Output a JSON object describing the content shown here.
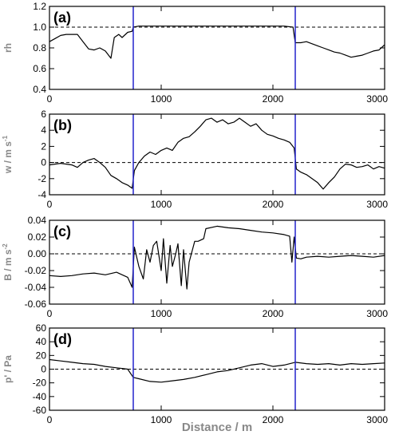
{
  "chart_data": [
    {
      "type": "line",
      "panel_label": "(a)",
      "ylabel": "rh",
      "ylim": [
        0.4,
        1.2
      ],
      "yticks": [
        0.4,
        0.6,
        0.8,
        1.0,
        1.2
      ],
      "ytick_labels": [
        "0.4",
        "0.6",
        "0.8",
        "1.0",
        "1.2"
      ],
      "xlim": [
        0,
        3000
      ],
      "xticks": [
        0,
        1000,
        2000,
        3000
      ],
      "xtick_labels": [
        "0",
        "1000",
        "2000",
        "3000"
      ],
      "reference_line": 1.0,
      "vlines": [
        750,
        2200
      ],
      "series": [
        {
          "x": [
            0,
            50,
            100,
            150,
            200,
            250,
            300,
            350,
            400,
            450,
            500,
            550,
            580,
            620,
            650,
            700,
            740,
            750,
            800,
            900,
            1000,
            1100,
            1200,
            1300,
            1400,
            1500,
            1600,
            1700,
            1800,
            1900,
            2000,
            2100,
            2180,
            2200,
            2250,
            2300,
            2350,
            2400,
            2450,
            2500,
            2550,
            2600,
            2650,
            2700,
            2750,
            2800,
            2850,
            2900,
            2950,
            3000
          ],
          "y": [
            0.86,
            0.89,
            0.92,
            0.93,
            0.93,
            0.93,
            0.86,
            0.79,
            0.78,
            0.8,
            0.77,
            0.7,
            0.9,
            0.93,
            0.9,
            0.95,
            0.96,
            1.0,
            1.01,
            1.01,
            1.01,
            1.01,
            1.01,
            1.01,
            1.01,
            1.01,
            1.01,
            1.01,
            1.01,
            1.01,
            1.01,
            1.01,
            1.0,
            0.85,
            0.85,
            0.86,
            0.84,
            0.82,
            0.8,
            0.78,
            0.76,
            0.75,
            0.73,
            0.71,
            0.72,
            0.73,
            0.75,
            0.77,
            0.78,
            0.83
          ]
        }
      ]
    },
    {
      "type": "line",
      "panel_label": "(b)",
      "ylabel": "w / m s",
      "ylabel_sup": "-1",
      "ylim": [
        -4,
        6
      ],
      "yticks": [
        -4,
        -2,
        0,
        2,
        4,
        6
      ],
      "ytick_labels": [
        "-4",
        "-2",
        "0",
        "2",
        "4",
        "6"
      ],
      "xlim": [
        0,
        3000
      ],
      "xticks": [
        0,
        1000,
        2000,
        3000
      ],
      "xtick_labels": [
        "0",
        "1000",
        "2000",
        "3000"
      ],
      "reference_line": 0,
      "vlines": [
        750,
        2200
      ],
      "series": [
        {
          "x": [
            0,
            50,
            100,
            150,
            200,
            250,
            300,
            350,
            400,
            450,
            500,
            550,
            600,
            650,
            700,
            740,
            760,
            800,
            850,
            900,
            950,
            1000,
            1050,
            1100,
            1150,
            1200,
            1250,
            1300,
            1350,
            1400,
            1450,
            1500,
            1550,
            1600,
            1650,
            1700,
            1750,
            1800,
            1850,
            1900,
            1950,
            2000,
            2050,
            2100,
            2150,
            2190,
            2210,
            2250,
            2300,
            2350,
            2400,
            2450,
            2500,
            2550,
            2600,
            2650,
            2700,
            2750,
            2800,
            2850,
            2900,
            2950,
            3000
          ],
          "y": [
            -0.3,
            -0.2,
            -0.1,
            -0.2,
            -0.3,
            -0.6,
            0.0,
            0.3,
            0.5,
            0.0,
            -0.6,
            -1.6,
            -2.0,
            -2.5,
            -2.8,
            -3.2,
            -1.0,
            0.0,
            0.8,
            1.3,
            1.0,
            1.5,
            1.8,
            1.5,
            2.5,
            3.0,
            3.2,
            3.8,
            4.5,
            5.3,
            5.5,
            5.0,
            5.3,
            4.8,
            5.0,
            5.5,
            5.0,
            4.5,
            4.8,
            4.0,
            3.5,
            3.3,
            3.0,
            2.8,
            2.5,
            1.8,
            -0.8,
            -1.2,
            -1.5,
            -2.0,
            -2.5,
            -3.3,
            -2.5,
            -1.8,
            -0.8,
            -0.2,
            -0.3,
            -0.6,
            -0.5,
            -0.3,
            -0.8,
            -0.5,
            -0.7
          ]
        }
      ]
    },
    {
      "type": "line",
      "panel_label": "(c)",
      "ylabel": "B / m s",
      "ylabel_sup": "-2",
      "ylim": [
        -0.06,
        0.04
      ],
      "yticks": [
        -0.06,
        -0.04,
        -0.02,
        0.0,
        0.02,
        0.04
      ],
      "ytick_labels": [
        "-0.06",
        "-0.04",
        "-0.02",
        "0.00",
        "0.02",
        "0.04"
      ],
      "xlim": [
        0,
        3000
      ],
      "xticks": [
        0,
        1000,
        2000,
        3000
      ],
      "xtick_labels": [
        "0",
        "1000",
        "2000",
        "3000"
      ],
      "reference_line": 0,
      "vlines": [
        750,
        2200
      ],
      "series": [
        {
          "x": [
            0,
            100,
            200,
            300,
            400,
            500,
            600,
            700,
            740,
            760,
            800,
            840,
            870,
            900,
            930,
            960,
            1000,
            1020,
            1050,
            1080,
            1100,
            1130,
            1150,
            1180,
            1200,
            1230,
            1250,
            1300,
            1330,
            1380,
            1400,
            1500,
            1600,
            1700,
            1800,
            1900,
            2000,
            2100,
            2150,
            2170,
            2190,
            2210,
            2250,
            2300,
            2400,
            2500,
            2600,
            2700,
            2800,
            2900,
            3000
          ],
          "y": [
            -0.026,
            -0.027,
            -0.026,
            -0.024,
            -0.023,
            -0.025,
            -0.022,
            -0.028,
            -0.04,
            0.008,
            -0.015,
            -0.03,
            0.005,
            -0.01,
            0.01,
            0.015,
            -0.02,
            0.018,
            -0.035,
            0.01,
            -0.015,
            0.0,
            0.012,
            -0.038,
            0.005,
            -0.042,
            -0.01,
            0.015,
            0.015,
            0.018,
            0.03,
            0.033,
            0.031,
            0.03,
            0.028,
            0.026,
            0.025,
            0.023,
            0.021,
            -0.01,
            0.02,
            -0.005,
            -0.006,
            -0.004,
            -0.003,
            -0.004,
            -0.003,
            -0.002,
            -0.003,
            -0.004,
            -0.002
          ]
        }
      ]
    },
    {
      "type": "line",
      "panel_label": "(d)",
      "ylabel": "p' / Pa",
      "ylim": [
        -60,
        60
      ],
      "yticks": [
        -60,
        -40,
        -20,
        0,
        20,
        40,
        60
      ],
      "ytick_labels": [
        "-60",
        "-40",
        "-20",
        "0",
        "20",
        "40",
        "60"
      ],
      "xlim": [
        0,
        3000
      ],
      "xticks": [
        0,
        1000,
        2000,
        3000
      ],
      "xtick_labels": [
        "0",
        "1000",
        "2000",
        "3000"
      ],
      "xlabel": "Distance / m",
      "reference_line": 0,
      "vlines": [
        750,
        2200
      ],
      "series": [
        {
          "x": [
            0,
            100,
            200,
            300,
            400,
            500,
            600,
            700,
            750,
            800,
            900,
            1000,
            1100,
            1200,
            1300,
            1400,
            1500,
            1600,
            1700,
            1800,
            1900,
            2000,
            2100,
            2200,
            2300,
            2400,
            2500,
            2600,
            2700,
            2800,
            2900,
            3000
          ],
          "y": [
            14,
            12,
            10,
            8,
            7,
            4,
            2,
            0,
            -12,
            -14,
            -18,
            -19,
            -17,
            -15,
            -12,
            -8,
            -4,
            -2,
            2,
            6,
            8,
            4,
            6,
            10,
            8,
            7,
            8,
            6,
            8,
            7,
            8,
            9
          ]
        }
      ]
    }
  ],
  "colors": {
    "series": "#000000",
    "vlines": "#2222cc",
    "reference": "#000000",
    "axis_label": "#888888"
  }
}
